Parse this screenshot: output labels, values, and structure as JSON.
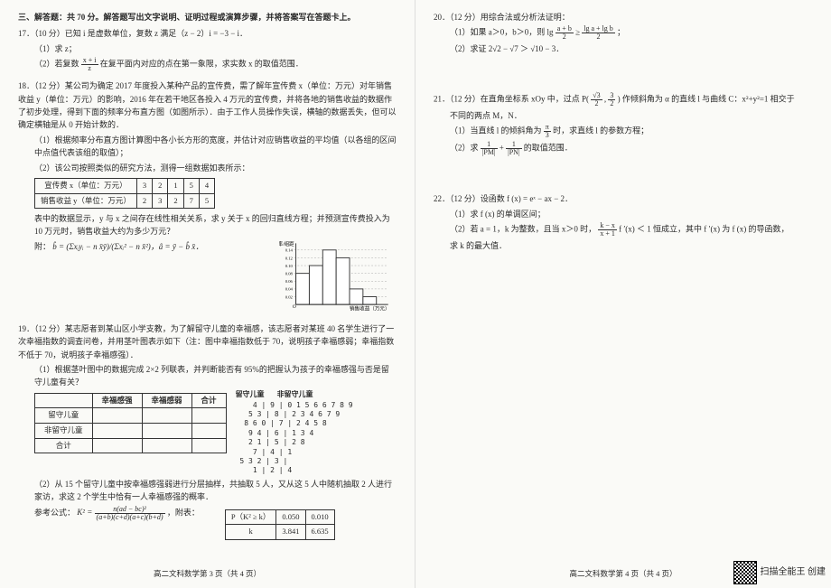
{
  "left": {
    "section_head": "三、解答题：共 70 分。解答题写出文字说明、证明过程或演算步骤，并将答案写在答题卡上。",
    "p17": {
      "head": "17．（10 分）已知 i 是虚数单位，复数 z 满足（z − 2）i = −3 − i．",
      "s1": "（1）求 z；",
      "s2_a": "（2）若复数 ",
      "s2_b": " 在复平面内对应的点在第一象限，求实数 x 的取值范围．",
      "frac_n": "x + i",
      "frac_d": "z"
    },
    "p18": {
      "head": "18．（12 分）某公司为确定 2017 年度投入某种产品的宣传费，需了解年宣传费 x（单位：万元）对年销售收益 y（单位：万元）的影响，2016 年在若干地区各投入 4 万元的宣传费，并将各地的销售收益的数据作了初步处理，得到下面的频率分布直方图（如图所示）．由于工作人员操作失误，横轴的数据丢失，但可以确定横轴是从 0 开始计数的．",
      "s1": "（1）根据频率分布直方图计算图中各小长方形的宽度，并估计对应销售收益的平均值（以各组的区间中点值代表该组的取值）；",
      "s2": "（2）该公司按照类似的研究方法，测得一组数据如表所示：",
      "table_head": [
        "宣传费 x（单位：万元）",
        "3",
        "2",
        "1",
        "5",
        "4"
      ],
      "table_row": [
        "销售收益 y（单位：万元）",
        "2",
        "3",
        "2",
        "7",
        "5"
      ],
      "after_table": "表中的数据显示，y 与 x 之间存在线性相关关系，求 y 关于 x 的回归直线方程；并预测宣传费投入为 10 万元时，销售收益大约为多少万元？",
      "hist_label_y": "频率/组距",
      "hist_label_x": "销售收益（万元）",
      "hist": {
        "bars": [
          0.08,
          0.1,
          0.14,
          0.12,
          0.04,
          0.02
        ],
        "yticks": [
          0.02,
          0.04,
          0.06,
          0.08,
          0.1,
          0.12,
          0.14
        ],
        "bar_color": "#ffffff",
        "border_color": "#333333",
        "grid_color": "#888888"
      },
      "note": "附："
    },
    "p19": {
      "head": "19．（12 分）某志愿者到某山区小学支教，为了解留守儿童的幸福感，该志愿者对某班 40 名学生进行了一次幸福指数的调查问卷，并用茎叶图表示如下（注：图中幸福指数低于 70，说明孩子幸福感弱；幸福指数不低于 70，说明孩子幸福感强）．",
      "s1": "（1）根据茎叶图中的数据完成 2×2 列联表，并判断能否有 95%的把握认为孩子的幸福感强与否是留守儿童有关？",
      "blank_head": [
        "",
        "幸福感强",
        "幸福感弱",
        "合计"
      ],
      "blank_rows": [
        "留守儿童",
        "非留守儿童",
        "合计"
      ],
      "stem_title_l": "留守儿童",
      "stem_title_r": "非留守儿童",
      "stem_rows": [
        "    4 | 9 | 0 1 5 6 6 7 8 9",
        "   5 3 | 8 | 2 3 4 6 7 9",
        "  8 6 0 | 7 | 2 4 5 8",
        "   9 4 | 6 | 1 3 4",
        "   2 1 | 5 | 2 8",
        "    7 | 4 | 1",
        " 5 3 2 | 3 |",
        "    1 | 2 | 4"
      ],
      "s2": "（2）从 15 个留守儿童中按幸福感强弱进行分层抽样，共抽取 5 人，又从这 5 人中随机抽取 2 人进行家访，求这 2 个学生中恰有一人幸福感强的概率．",
      "ref": "参考公式：",
      "ref_tail": "，附表：",
      "table2_h": [
        "P（K² ≥ k）",
        "0.050",
        "0.010"
      ],
      "table2_r": [
        "k",
        "3.841",
        "6.635"
      ]
    },
    "footer": "高二文科数学第 3 页（共 4 页）"
  },
  "right": {
    "p20": {
      "head": "20．（12 分）用综合法或分析法证明：",
      "s1_a": "（1）如果 a＞0，b＞0，则 lg ",
      "s1_b": " ≥ ",
      "s1_c": "；",
      "f1n": "a + b",
      "f1d": "2",
      "f2n": "lg a + lg b",
      "f2d": "2",
      "s2": "（2）求证 2√2 − √7 ＞ √10 − 3．"
    },
    "p21": {
      "head_a": "21．（12 分）在直角坐标系 xOy 中，过点 P( ",
      "head_b": " , ",
      "head_c": " ) 作倾斜角为 α 的直线 l 与曲线 C：x²+y²=1 相交于",
      "pfx_n": "√3",
      "pfx_d": "2",
      "pfy_n": "3",
      "pfy_d": "2",
      "line2": "不同的两点 M，N．",
      "s1_a": "（1）当直线 l 的倾斜角为 ",
      "s1_b": " 时，求直线 l 的参数方程；",
      "pi_n": "π",
      "pi_d": "3",
      "s2_a": "（2）求 ",
      "s2_b": " 的取值范围．",
      "fr_n": "1",
      "fr_d1": "|PM|",
      "fr_d2": "|PN|"
    },
    "p22": {
      "head": "22．（12 分）设函数 f (x) = eˣ − ax − 2．",
      "s1": "（1）求 f (x) 的单调区间；",
      "s2_a": "（2）若 a = 1，k 为整数，且当 x＞0 时，",
      "s2_b": " f ′(x) ＜ 1 恒成立，其中 f ′(x) 为 f (x) 的导函数，",
      "fr_n": "k − x",
      "fr_d": "x + 1",
      "s3": "求 k 的最大值．"
    },
    "footer": "高二文科数学第 4 页（共 4 页）",
    "qr_label": "扫描全能王 创建"
  }
}
